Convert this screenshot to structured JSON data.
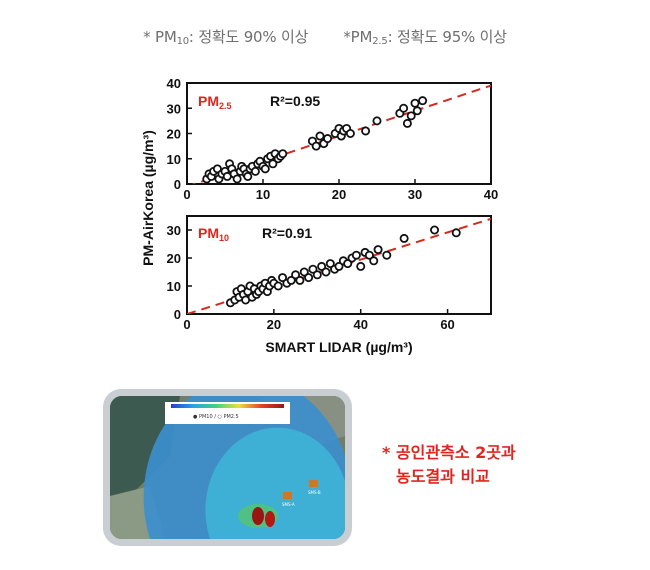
{
  "header": {
    "note_pm10_prefix": "* PM",
    "note_pm10_sub": "10",
    "note_pm10_text": ": 정확도 90% 이상",
    "note_pm25_prefix": "*PM",
    "note_pm25_sub": "2.5",
    "note_pm25_text": ": 정확도 95% 이상"
  },
  "chart_data": [
    {
      "type": "scatter",
      "panel_label_main": "PM",
      "panel_label_sub": "2.5",
      "r2_text": "R²=0.95",
      "xlim": [
        0,
        40
      ],
      "ylim": [
        0,
        40
      ],
      "x_ticks": [
        "0",
        "10",
        "20",
        "30",
        "40"
      ],
      "y_ticks": [
        "0",
        "10",
        "20",
        "30",
        "40"
      ],
      "fit_line": [
        [
          0,
          -1
        ],
        [
          40,
          39
        ]
      ],
      "points": [
        [
          2.6,
          2
        ],
        [
          2.9,
          4
        ],
        [
          3.2,
          3
        ],
        [
          3.5,
          5
        ],
        [
          4.0,
          6
        ],
        [
          4.2,
          2
        ],
        [
          4.6,
          4
        ],
        [
          5.0,
          5
        ],
        [
          5.3,
          3
        ],
        [
          5.6,
          8
        ],
        [
          5.9,
          6
        ],
        [
          6.2,
          4
        ],
        [
          6.6,
          2
        ],
        [
          7.0,
          5
        ],
        [
          7.2,
          7
        ],
        [
          7.5,
          6
        ],
        [
          7.8,
          4
        ],
        [
          8.0,
          3
        ],
        [
          8.3,
          6
        ],
        [
          8.6,
          7
        ],
        [
          9.0,
          5
        ],
        [
          9.3,
          8
        ],
        [
          9.6,
          9
        ],
        [
          10.0,
          7
        ],
        [
          10.3,
          6
        ],
        [
          10.6,
          10
        ],
        [
          11.0,
          11
        ],
        [
          11.3,
          8
        ],
        [
          11.6,
          12
        ],
        [
          12.0,
          10
        ],
        [
          12.3,
          11
        ],
        [
          12.6,
          12
        ],
        [
          16.5,
          17
        ],
        [
          17.0,
          15
        ],
        [
          17.5,
          19
        ],
        [
          18.0,
          16
        ],
        [
          18.5,
          18
        ],
        [
          19.5,
          20
        ],
        [
          20.0,
          22
        ],
        [
          20.3,
          19
        ],
        [
          20.6,
          21
        ],
        [
          21.0,
          22
        ],
        [
          21.5,
          20
        ],
        [
          23.5,
          21
        ],
        [
          25.0,
          25
        ],
        [
          28.0,
          28
        ],
        [
          28.5,
          30
        ],
        [
          29.0,
          24
        ],
        [
          29.5,
          27
        ],
        [
          30.0,
          32
        ],
        [
          30.3,
          29
        ],
        [
          31.0,
          33
        ]
      ]
    },
    {
      "type": "scatter",
      "panel_label_main": "PM",
      "panel_label_sub": "10",
      "r2_text": "R²=0.91",
      "xlim": [
        0,
        70
      ],
      "ylim": [
        0,
        35
      ],
      "x_ticks": [
        "0",
        "20",
        "40",
        "60"
      ],
      "y_ticks": [
        "0",
        "10",
        "20",
        "30"
      ],
      "fit_line": [
        [
          0,
          0
        ],
        [
          70,
          34
        ]
      ],
      "points": [
        [
          10,
          4
        ],
        [
          11,
          5
        ],
        [
          11.5,
          8
        ],
        [
          12,
          6
        ],
        [
          12.5,
          9
        ],
        [
          13,
          7
        ],
        [
          13.5,
          5
        ],
        [
          14,
          8
        ],
        [
          14.5,
          10
        ],
        [
          15,
          6
        ],
        [
          15.5,
          9
        ],
        [
          16,
          7
        ],
        [
          16.5,
          8
        ],
        [
          17,
          10
        ],
        [
          17.5,
          9
        ],
        [
          18,
          11
        ],
        [
          18.5,
          8
        ],
        [
          19,
          10
        ],
        [
          19.5,
          12
        ],
        [
          20,
          11
        ],
        [
          21,
          10
        ],
        [
          22,
          13
        ],
        [
          23,
          11
        ],
        [
          24,
          12
        ],
        [
          25,
          14
        ],
        [
          26,
          12
        ],
        [
          27,
          15
        ],
        [
          28,
          13
        ],
        [
          29,
          16
        ],
        [
          30,
          14
        ],
        [
          31,
          17
        ],
        [
          32,
          15
        ],
        [
          33,
          18
        ],
        [
          34,
          16
        ],
        [
          35,
          17
        ],
        [
          36,
          19
        ],
        [
          37,
          18
        ],
        [
          38,
          20
        ],
        [
          39,
          21
        ],
        [
          40,
          17
        ],
        [
          41,
          22
        ],
        [
          42,
          21
        ],
        [
          43,
          19
        ],
        [
          44,
          23
        ],
        [
          46,
          21
        ],
        [
          50,
          27
        ],
        [
          57,
          30
        ],
        [
          62,
          29
        ]
      ]
    }
  ],
  "axes_text": {
    "y_label": "PM-AirKorea (µg/m³)",
    "x_label": "SMART LIDAR (µg/m³)"
  },
  "map": {
    "legend_text": "● PM10 / ○ PM2.5",
    "station_a": "SMS-A",
    "station_b": "SMS-B"
  },
  "side_note": {
    "line1": "* 공인관측소 2곳과",
    "line2": "농도결과 비교"
  },
  "colors": {
    "accent_red": "#e0251f",
    "fit_line": "#d42a1f",
    "note_gray": "#6f6f6f"
  }
}
